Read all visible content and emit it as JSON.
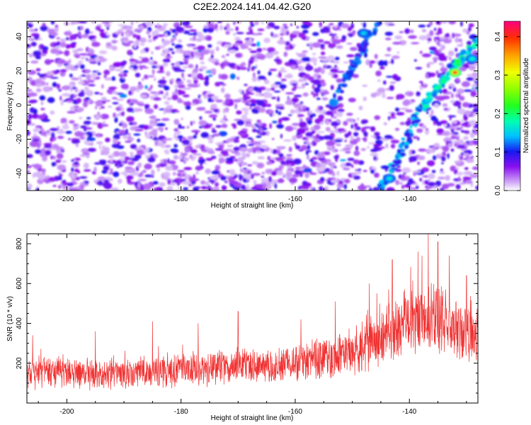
{
  "title": "C2E2.2024.141.04.42.G20",
  "chart_data": [
    {
      "type": "heatmap",
      "xlabel": "Height of straight line (km)",
      "ylabel": "Frequency (Hz)",
      "xlim": [
        -207,
        -128
      ],
      "ylim": [
        -50,
        49
      ],
      "xticks": [
        -200,
        -180,
        -160,
        -140
      ],
      "yticks": [
        -40,
        -20,
        0,
        20,
        40
      ],
      "colorbar": {
        "label": "Normalized spectral amplitude",
        "range": [
          0,
          0.44
        ],
        "ticks": [
          "0.0",
          "0.1",
          "0.2",
          "0.3",
          "0.4"
        ]
      },
      "features": [
        {
          "name": "",
          "x": [
            -153.5,
            -145.5
          ],
          "y": [
            0,
            49
          ],
          "amplitude": 0.14
        },
        {
          "name": "",
          "x": [
            -145,
            -137.5
          ],
          "y": [
            -50,
            0
          ],
          "amplitude": 0.16
        },
        {
          "name": "",
          "x": [
            -137.5,
            -128
          ],
          "y": [
            0,
            38
          ],
          "amplitude": 0.22
        }
      ],
      "hotspots": [
        {
          "x": -132,
          "y": 19,
          "amplitude": 0.42
        },
        {
          "x": -129,
          "y": 27,
          "amplitude": 0.18
        },
        {
          "x": -143.5,
          "y": -43,
          "amplitude": 0.17
        },
        {
          "x": -148,
          "y": 42,
          "amplitude": 0.16
        }
      ]
    },
    {
      "type": "line",
      "xlabel": "Height of straight line (km)",
      "ylabel": "SNR (10 * v/v)",
      "xlim": [
        -207,
        -128
      ],
      "ylim": [
        0,
        850
      ],
      "xticks": [
        -200,
        -180,
        -160,
        -140
      ],
      "yticks": [
        200,
        400,
        600,
        800
      ],
      "color": "#f03232",
      "trend": [
        {
          "x": -207,
          "mean": 150,
          "spread": 90
        },
        {
          "x": -190,
          "mean": 150,
          "spread": 95
        },
        {
          "x": -175,
          "mean": 175,
          "spread": 100
        },
        {
          "x": -160,
          "mean": 200,
          "spread": 110
        },
        {
          "x": -150,
          "mean": 250,
          "spread": 140
        },
        {
          "x": -145,
          "mean": 320,
          "spread": 170
        },
        {
          "x": -140,
          "mean": 430,
          "spread": 200
        },
        {
          "x": -135,
          "mean": 420,
          "spread": 190
        },
        {
          "x": -128,
          "mean": 330,
          "spread": 170
        }
      ],
      "peaks": [
        {
          "x": -206,
          "y": 340
        },
        {
          "x": -195,
          "y": 360
        },
        {
          "x": -185,
          "y": 410
        },
        {
          "x": -177,
          "y": 400
        },
        {
          "x": -170,
          "y": 460
        },
        {
          "x": -159,
          "y": 420
        },
        {
          "x": -153,
          "y": 510
        },
        {
          "x": -147,
          "y": 600
        },
        {
          "x": -143,
          "y": 720
        },
        {
          "x": -138.5,
          "y": 760
        },
        {
          "x": -136.7,
          "y": 850
        },
        {
          "x": -135,
          "y": 810
        },
        {
          "x": -133,
          "y": 740
        },
        {
          "x": -130,
          "y": 640
        }
      ]
    }
  ]
}
